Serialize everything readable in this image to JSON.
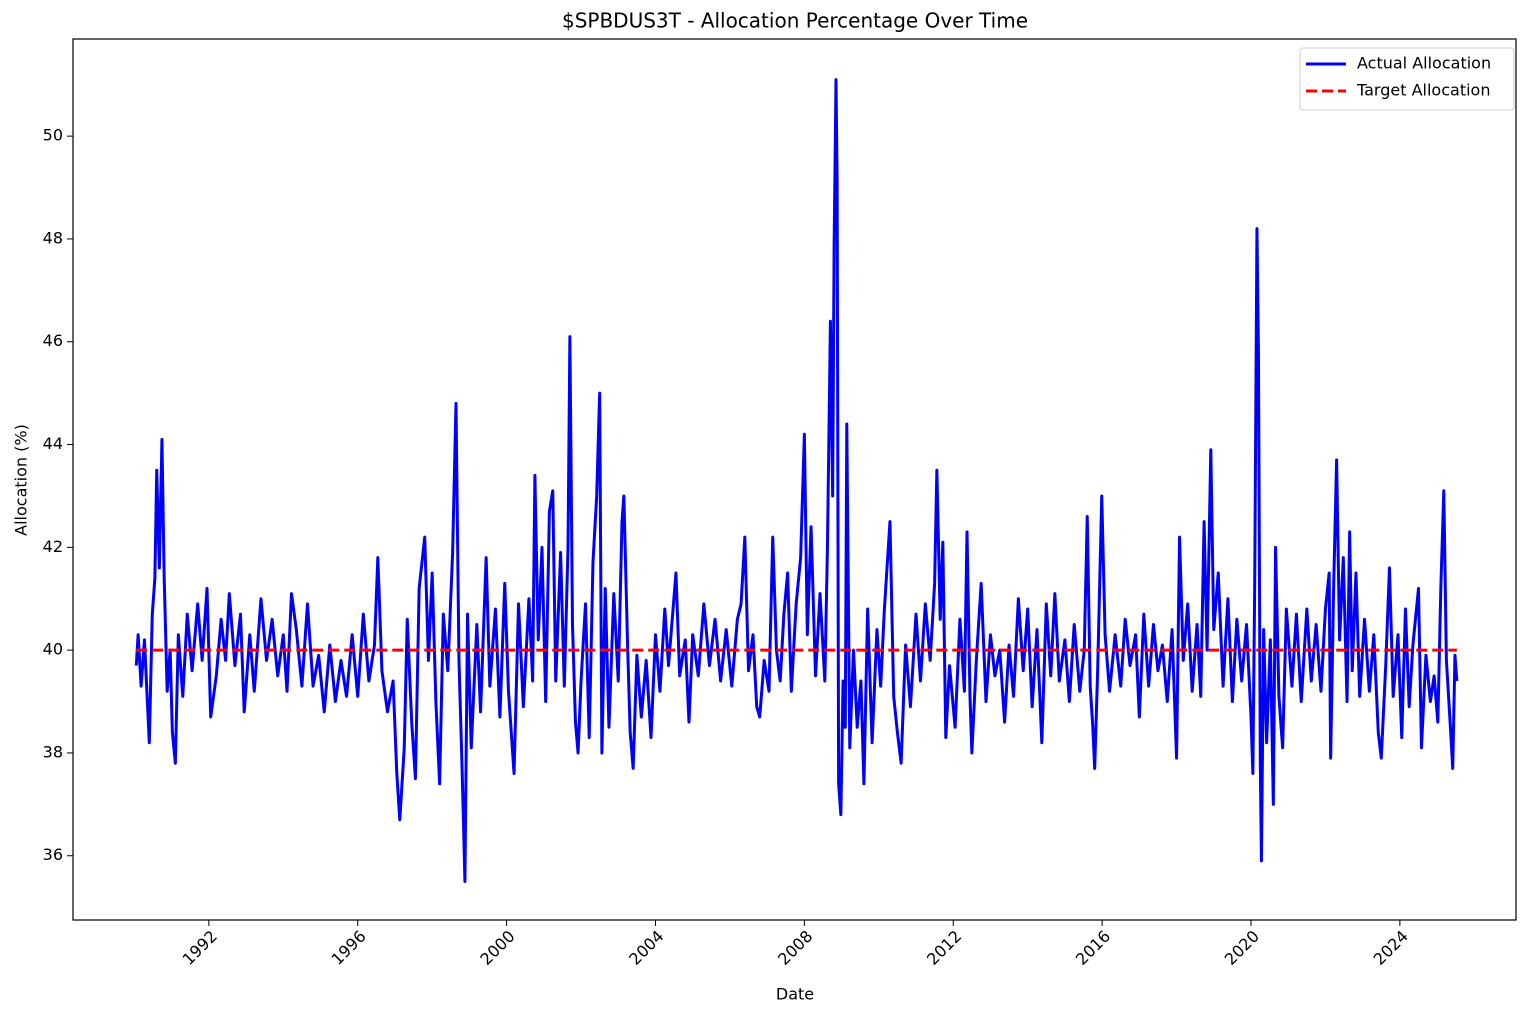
{
  "chart_data": {
    "type": "line",
    "title": "$SPBDUS3T - Allocation Percentage Over Time",
    "xlabel": "Date",
    "ylabel": "Allocation (%)",
    "xlim": [
      1988.35,
      2027.12
    ],
    "ylim": [
      34.75,
      51.89
    ],
    "xticks": [
      1992,
      1996,
      2000,
      2004,
      2008,
      2012,
      2016,
      2020,
      2024
    ],
    "yticks": [
      36,
      38,
      40,
      42,
      44,
      46,
      48,
      50
    ],
    "legend": "upper right",
    "series": [
      {
        "name": "Actual Allocation",
        "color": "#0000ff",
        "linestyle": "solid",
        "x": [
          1990.05,
          1990.1,
          1990.18,
          1990.27,
          1990.4,
          1990.48,
          1990.55,
          1990.6,
          1990.67,
          1990.74,
          1990.8,
          1990.88,
          1990.96,
          1991.02,
          1991.1,
          1991.18,
          1991.3,
          1991.42,
          1991.55,
          1991.7,
          1991.82,
          1991.95,
          1992.05,
          1992.2,
          1992.33,
          1992.45,
          1992.55,
          1992.7,
          1992.85,
          1992.95,
          1993.1,
          1993.22,
          1993.4,
          1993.55,
          1993.7,
          1993.85,
          1994.0,
          1994.1,
          1994.22,
          1994.35,
          1994.5,
          1994.65,
          1994.8,
          1994.95,
          1995.1,
          1995.25,
          1995.4,
          1995.55,
          1995.7,
          1995.85,
          1996.0,
          1996.15,
          1996.3,
          1996.45,
          1996.54,
          1996.65,
          1996.8,
          1996.95,
          1997.05,
          1997.13,
          1997.25,
          1997.33,
          1997.45,
          1997.55,
          1997.65,
          1997.8,
          1997.9,
          1998.0,
          1998.1,
          1998.2,
          1998.3,
          1998.42,
          1998.55,
          1998.64,
          1998.72,
          1998.8,
          1998.85,
          1998.88,
          1998.95,
          1999.05,
          1999.2,
          1999.3,
          1999.45,
          1999.55,
          1999.7,
          1999.82,
          1999.95,
          2000.05,
          2000.2,
          2000.32,
          2000.45,
          2000.6,
          2000.7,
          2000.76,
          2000.85,
          2000.95,
          2001.05,
          2001.15,
          2001.24,
          2001.32,
          2001.45,
          2001.55,
          2001.65,
          2001.7,
          2001.77,
          2001.85,
          2001.92,
          2002.0,
          2002.12,
          2002.22,
          2002.32,
          2002.42,
          2002.5,
          2002.56,
          2002.65,
          2002.75,
          2002.88,
          2003.0,
          2003.1,
          2003.15,
          2003.25,
          2003.32,
          2003.4,
          2003.5,
          2003.62,
          2003.75,
          2003.88,
          2004.0,
          2004.12,
          2004.25,
          2004.35,
          2004.45,
          2004.55,
          2004.65,
          2004.8,
          2004.9,
          2005.0,
          2005.15,
          2005.3,
          2005.45,
          2005.6,
          2005.75,
          2005.9,
          2006.05,
          2006.2,
          2006.3,
          2006.4,
          2006.5,
          2006.62,
          2006.72,
          2006.8,
          2006.92,
          2007.05,
          2007.15,
          2007.25,
          2007.35,
          2007.45,
          2007.55,
          2007.65,
          2007.78,
          2007.9,
          2008.0,
          2008.08,
          2008.18,
          2008.3,
          2008.42,
          2008.55,
          2008.62,
          2008.7,
          2008.76,
          2008.8,
          2008.85,
          2008.88,
          2008.92,
          2008.98,
          2009.04,
          2009.1,
          2009.14,
          2009.22,
          2009.32,
          2009.42,
          2009.52,
          2009.6,
          2009.7,
          2009.82,
          2009.95,
          2010.05,
          2010.15,
          2010.3,
          2010.4,
          2010.5,
          2010.6,
          2010.72,
          2010.85,
          2011.0,
          2011.12,
          2011.25,
          2011.38,
          2011.5,
          2011.56,
          2011.65,
          2011.72,
          2011.8,
          2011.9,
          2012.05,
          2012.18,
          2012.3,
          2012.37,
          2012.45,
          2012.5,
          2012.62,
          2012.75,
          2012.88,
          2013.0,
          2013.12,
          2013.25,
          2013.38,
          2013.5,
          2013.62,
          2013.75,
          2013.88,
          2014.0,
          2014.12,
          2014.25,
          2014.38,
          2014.5,
          2014.62,
          2014.73,
          2014.85,
          2015.0,
          2015.12,
          2015.25,
          2015.4,
          2015.52,
          2015.6,
          2015.68,
          2015.75,
          2015.8,
          2015.88,
          2015.99,
          2016.08,
          2016.2,
          2016.35,
          2016.5,
          2016.62,
          2016.75,
          2016.9,
          2017.0,
          2017.12,
          2017.25,
          2017.38,
          2017.5,
          2017.62,
          2017.75,
          2017.88,
          2018.0,
          2018.08,
          2018.18,
          2018.3,
          2018.42,
          2018.55,
          2018.65,
          2018.74,
          2018.82,
          2018.92,
          2019.0,
          2019.12,
          2019.25,
          2019.38,
          2019.5,
          2019.62,
          2019.75,
          2019.88,
          2020.0,
          2020.05,
          2020.1,
          2020.16,
          2020.2,
          2020.25,
          2020.28,
          2020.34,
          2020.42,
          2020.52,
          2020.6,
          2020.66,
          2020.75,
          2020.85,
          2020.95,
          2021.1,
          2021.22,
          2021.35,
          2021.5,
          2021.62,
          2021.75,
          2021.88,
          2022.0,
          2022.1,
          2022.14,
          2022.22,
          2022.3,
          2022.38,
          2022.48,
          2022.58,
          2022.65,
          2022.72,
          2022.82,
          2022.92,
          2023.05,
          2023.18,
          2023.3,
          2023.42,
          2023.5,
          2023.62,
          2023.72,
          2023.82,
          2023.95,
          2024.05,
          2024.15,
          2024.25,
          2024.35,
          2024.5,
          2024.58,
          2024.7,
          2024.82,
          2024.92,
          2025.02,
          2025.1,
          2025.18,
          2025.25,
          2025.35,
          2025.42,
          2025.48,
          2025.53
        ],
        "values": [
          39.7,
          40.3,
          39.3,
          40.2,
          38.2,
          40.7,
          41.4,
          43.5,
          41.6,
          44.1,
          41.4,
          39.2,
          40.0,
          38.4,
          37.8,
          40.3,
          39.1,
          40.7,
          39.6,
          40.9,
          39.8,
          41.2,
          38.7,
          39.5,
          40.6,
          39.8,
          41.1,
          39.7,
          40.7,
          38.8,
          40.3,
          39.2,
          41.0,
          39.8,
          40.6,
          39.5,
          40.3,
          39.2,
          41.1,
          40.4,
          39.3,
          40.9,
          39.3,
          39.9,
          38.8,
          40.1,
          39.0,
          39.8,
          39.1,
          40.3,
          39.1,
          40.7,
          39.4,
          40.1,
          41.8,
          39.6,
          38.8,
          39.4,
          37.6,
          36.7,
          38.1,
          40.6,
          38.6,
          37.5,
          41.2,
          42.2,
          39.8,
          41.5,
          39.0,
          37.4,
          40.7,
          39.6,
          41.9,
          44.8,
          39.8,
          37.8,
          36.4,
          35.5,
          40.7,
          38.1,
          40.5,
          38.8,
          41.8,
          39.3,
          40.8,
          38.7,
          41.3,
          39.2,
          37.6,
          40.9,
          38.9,
          41.0,
          39.4,
          43.4,
          40.2,
          42.0,
          39.0,
          42.7,
          43.1,
          39.4,
          41.9,
          39.3,
          42.0,
          46.1,
          40.5,
          38.6,
          38.0,
          39.4,
          40.9,
          38.3,
          41.7,
          43.0,
          45.0,
          38.0,
          41.2,
          38.5,
          41.1,
          39.4,
          42.5,
          43.0,
          40.1,
          38.4,
          37.7,
          39.9,
          38.7,
          39.8,
          38.3,
          40.3,
          39.2,
          40.8,
          39.7,
          40.6,
          41.5,
          39.5,
          40.2,
          38.6,
          40.3,
          39.5,
          40.9,
          39.7,
          40.6,
          39.4,
          40.4,
          39.3,
          40.6,
          40.9,
          42.2,
          39.6,
          40.3,
          38.9,
          38.7,
          39.8,
          39.2,
          42.2,
          40.0,
          39.4,
          40.7,
          41.5,
          39.2,
          40.9,
          41.8,
          44.2,
          40.3,
          42.4,
          39.5,
          41.1,
          39.4,
          42.0,
          46.4,
          43.0,
          47.9,
          51.1,
          49.1,
          37.4,
          36.8,
          39.4,
          38.5,
          44.4,
          38.1,
          40.0,
          38.5,
          39.4,
          37.4,
          40.8,
          38.2,
          40.4,
          39.3,
          40.8,
          42.5,
          39.1,
          38.4,
          37.8,
          40.1,
          38.9,
          40.7,
          39.4,
          40.9,
          39.8,
          41.3,
          43.5,
          40.6,
          42.1,
          38.3,
          39.7,
          38.5,
          40.6,
          39.2,
          42.3,
          39.1,
          38.0,
          39.8,
          41.3,
          39.0,
          40.3,
          39.5,
          40.0,
          38.6,
          40.1,
          39.1,
          41.0,
          39.6,
          40.8,
          38.9,
          40.4,
          38.2,
          40.9,
          39.5,
          41.1,
          39.4,
          40.2,
          39.0,
          40.5,
          39.2,
          40.0,
          42.6,
          39.3,
          38.5,
          37.7,
          39.6,
          43.0,
          40.3,
          39.2,
          40.3,
          39.3,
          40.6,
          39.7,
          40.3,
          38.7,
          40.7,
          39.3,
          40.5,
          39.6,
          40.1,
          39.0,
          40.4,
          37.9,
          42.2,
          39.8,
          40.9,
          39.2,
          40.5,
          39.1,
          42.5,
          40.0,
          43.9,
          40.4,
          41.5,
          39.3,
          41.0,
          39.0,
          40.6,
          39.4,
          40.5,
          38.7,
          37.6,
          41.3,
          48.2,
          45.8,
          37.8,
          35.9,
          40.4,
          38.2,
          40.2,
          37.0,
          42.0,
          39.1,
          38.1,
          40.8,
          39.3,
          40.7,
          39.0,
          40.8,
          39.4,
          40.5,
          39.2,
          40.8,
          41.5,
          37.9,
          41.2,
          43.7,
          40.2,
          41.8,
          39.0,
          42.3,
          39.6,
          41.5,
          39.1,
          40.6,
          39.2,
          40.3,
          38.4,
          37.9,
          39.7,
          41.6,
          39.1,
          40.3,
          38.3,
          40.8,
          38.9,
          40.1,
          41.2,
          38.1,
          39.9,
          39.0,
          39.5,
          38.6,
          41.2,
          43.1,
          39.8,
          38.6,
          37.7,
          39.9,
          39.4
        ]
      },
      {
        "name": "Target Allocation",
        "color": "#ff0000",
        "linestyle": "dashed",
        "x": [
          1990.05,
          2025.53
        ],
        "values": [
          40,
          40
        ]
      }
    ]
  }
}
